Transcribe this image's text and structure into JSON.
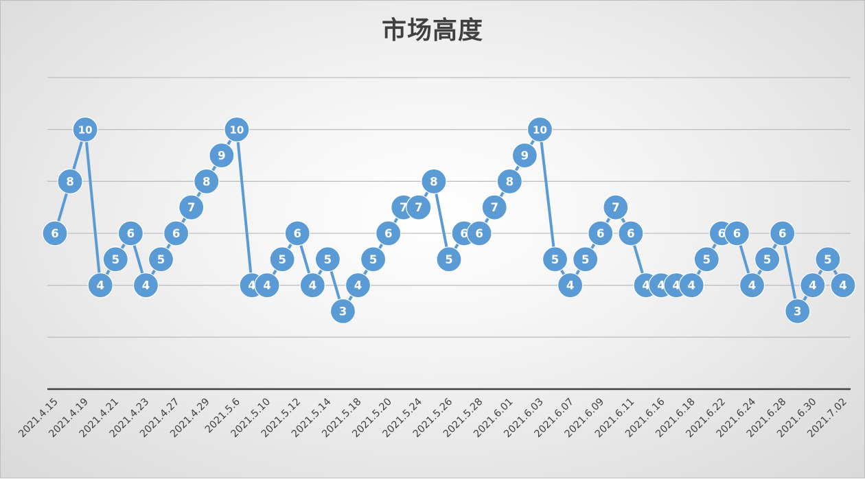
{
  "chart_data": {
    "type": "line",
    "title": "市场高度",
    "xlabel": "",
    "ylabel": "",
    "ylim": [
      0,
      12
    ],
    "grid": true,
    "y_tick_labels": "none",
    "x_tick_labels": [
      "2021.4.15",
      "2021.4.19",
      "2021.4.21",
      "2021.4.23",
      "2021.4.27",
      "2021.4.29",
      "2021.5.6",
      "2021.5.10",
      "2021.5.12",
      "2021.5.14",
      "2021.5.18",
      "2021.5.20",
      "2021.5.24",
      "2021.5.26",
      "2021.5.28",
      "2021.6.01",
      "2021.6.03",
      "2021.6.07",
      "2021.6.09",
      "2021.6.11",
      "2021.6.16",
      "2021.6.18",
      "2021.6.22",
      "2021.6.24",
      "2021.6.28",
      "2021.6.30",
      "2021.7.02"
    ],
    "values": [
      6,
      8,
      10,
      4,
      5,
      6,
      4,
      5,
      6,
      7,
      8,
      9,
      10,
      4,
      4,
      5,
      6,
      4,
      5,
      3,
      4,
      5,
      6,
      7,
      7,
      8,
      5,
      6,
      6,
      7,
      8,
      9,
      10,
      5,
      4,
      5,
      6,
      7,
      6,
      4,
      4,
      4,
      4,
      5,
      6,
      6,
      4,
      5,
      6,
      3,
      4,
      5,
      4
    ],
    "data_labels": true,
    "colors": {
      "line": "#5b9bd5",
      "marker": "#5b9bd5",
      "label": "#ffffff",
      "gridline": "#bfbfbf",
      "axis": "#404040",
      "title": "#404040"
    }
  }
}
